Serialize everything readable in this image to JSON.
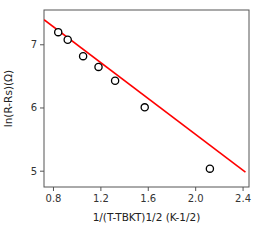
{
  "chart_data": {
    "type": "scatter",
    "xlabel": "1/(T-TBKT)1/2 (K-1/2)",
    "ylabel": "ln(R-Rs)(Ω)",
    "xlim": [
      0.72,
      2.45
    ],
    "ylim": [
      4.75,
      7.55
    ],
    "xticks": [
      0.8,
      1.2,
      1.6,
      {
        "value": 2.0,
        "label": "2.0"
      },
      2.4
    ],
    "yticks": [
      5,
      6,
      7
    ],
    "grid": false,
    "series": [
      {
        "type": "scatter",
        "marker": "circle",
        "color": "black",
        "x": [
          0.84,
          0.92,
          1.05,
          1.18,
          1.32,
          1.57,
          2.12
        ],
        "values": [
          7.2,
          7.08,
          6.82,
          6.65,
          6.43,
          6.01,
          5.04
        ]
      },
      {
        "type": "line",
        "line_style": "solid",
        "color": "red",
        "x": [
          0.72,
          2.42
        ],
        "values": [
          7.3976,
          4.9836
        ]
      }
    ]
  }
}
